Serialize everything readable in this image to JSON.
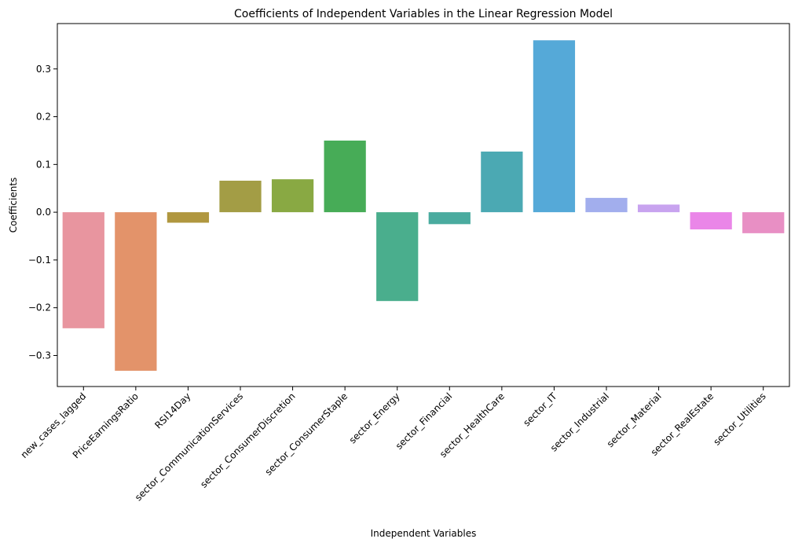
{
  "chart_data": {
    "type": "bar",
    "title": "Coefficients of Independent Variables in the Linear Regression Model",
    "xlabel": "Independent Variables",
    "ylabel": "Coefficients",
    "ylim": [
      -0.365,
      0.395
    ],
    "yticks": [
      -0.3,
      -0.2,
      -0.1,
      0.0,
      0.1,
      0.2,
      0.3
    ],
    "ytick_labels": [
      "−0.3",
      "−0.2",
      "−0.1",
      "0.0",
      "0.1",
      "0.2",
      "0.3"
    ],
    "grid": false,
    "categories": [
      "new_cases_lagged",
      "PriceEarningsRatio",
      "RSI14Day",
      "sector_CommunicationServices",
      "sector_ConsumerDiscretion",
      "sector_ConsumerStaple",
      "sector_Energy",
      "sector_Financial",
      "sector_HealthCare",
      "sector_IT",
      "sector_Industrial",
      "sector_Material",
      "sector_RealEstate",
      "sector_Utilities"
    ],
    "values": [
      -0.243,
      -0.332,
      -0.022,
      0.066,
      0.069,
      0.15,
      -0.186,
      -0.025,
      0.127,
      0.36,
      0.03,
      0.016,
      -0.036,
      -0.044
    ],
    "colors": [
      "#e8959f",
      "#e3936a",
      "#b0973f",
      "#a39d45",
      "#89a943",
      "#47ac57",
      "#4aae8d",
      "#4aab9f",
      "#4ba9b3",
      "#55a9d8",
      "#a2aeed",
      "#c8a3ef",
      "#ea86e8",
      "#e88fc4"
    ]
  }
}
